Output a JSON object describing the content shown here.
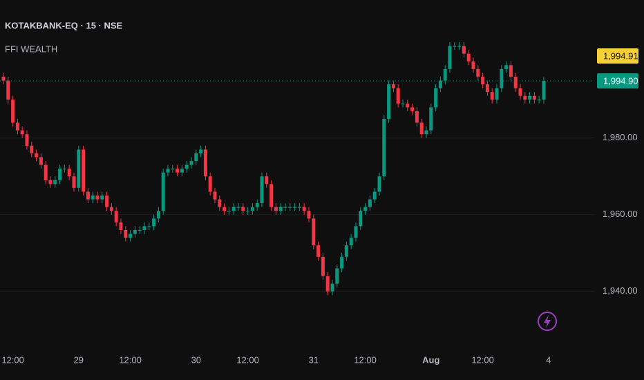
{
  "chart_data": {
    "type": "candlestick",
    "title": "KOTAKBANK-EQ · 15 · NSE",
    "subtitle": "FFI WEALTH",
    "categories": [
      null,
      null,
      "12:00",
      null,
      null,
      null,
      null,
      null,
      null,
      null,
      null,
      null,
      null,
      null,
      null,
      null,
      "29",
      null,
      null,
      null,
      null,
      null,
      null,
      null,
      null,
      null,
      null,
      "12:00",
      null,
      null,
      null,
      null,
      null,
      null,
      null,
      null,
      null,
      null,
      null,
      null,
      null,
      "30",
      null,
      null,
      null,
      null,
      null,
      null,
      null,
      null,
      null,
      null,
      "12:00",
      null,
      null,
      null,
      null,
      null,
      null,
      null,
      null,
      null,
      null,
      null,
      null,
      null,
      "31",
      null,
      null,
      null,
      null,
      null,
      null,
      null,
      null,
      null,
      null,
      "12:00",
      null,
      null,
      null,
      null,
      null,
      null,
      null,
      null,
      null,
      null,
      null,
      null,
      null,
      "Aug",
      null,
      null,
      null,
      null,
      null,
      null,
      null,
      null,
      null,
      null,
      "12:00",
      null,
      null,
      null,
      null,
      null,
      null,
      null,
      null,
      null,
      null,
      null,
      null,
      null,
      "4"
    ],
    "open": [
      1996,
      1995,
      1990,
      1984,
      1982,
      1981,
      1978,
      1976,
      1975,
      1973,
      1969,
      1968,
      1969,
      1972,
      1972,
      1970,
      1967,
      1977,
      1966,
      1964,
      1965,
      1964,
      1965,
      1962,
      1961,
      1958,
      1956,
      1954,
      1955,
      1956,
      1956,
      1957,
      1957,
      1959,
      1961,
      1971,
      1972,
      1972,
      1971,
      1972,
      1973,
      1974,
      1976,
      1977,
      1970,
      1966,
      1964,
      1962,
      1961,
      1961,
      1962,
      1962,
      1961,
      1961,
      1962,
      1963,
      1970,
      1968,
      1962,
      1961,
      1962,
      1962,
      1962,
      1962,
      1962,
      1961,
      1959,
      1952,
      1949,
      1944,
      1940,
      1942,
      1946,
      1949,
      1952,
      1954,
      1957,
      1961,
      1962,
      1964,
      1966,
      1970,
      1985,
      1994,
      1993,
      1989,
      1989,
      1988,
      1987,
      1984,
      1981,
      1982,
      1988,
      1993,
      1995,
      1998,
      2004,
      2004,
      2004,
      2002,
      2000,
      1998,
      1996,
      1994,
      1992,
      1990,
      1993,
      1998,
      1999,
      1996,
      1993,
      1991,
      1990,
      1991,
      1990,
      1990,
      null
    ],
    "high": [
      1997,
      1996,
      1991,
      1985,
      1983,
      1982,
      1979,
      1977,
      1976,
      1974,
      1970,
      1970,
      1973,
      1973,
      1973,
      1971,
      1978,
      1978,
      1967,
      1966,
      1966,
      1966,
      1966,
      1963,
      1962,
      1959,
      1957,
      1956,
      1957,
      1957,
      1958,
      1958,
      1960,
      1962,
      1972,
      1973,
      1973,
      1973,
      1973,
      1974,
      1975,
      1977,
      1978,
      1978,
      1971,
      1967,
      1965,
      1963,
      1962,
      1963,
      1963,
      1963,
      1962,
      1963,
      1964,
      1971,
      1971,
      1969,
      1963,
      1963,
      1963,
      1963,
      1963,
      1963,
      1963,
      1962,
      1960,
      1953,
      1950,
      1945,
      1943,
      1947,
      1950,
      1953,
      1955,
      1958,
      1962,
      1963,
      1965,
      1967,
      1971,
      1986,
      1995,
      1995,
      1994,
      1990,
      1990,
      1989,
      1988,
      1985,
      1983,
      1989,
      1994,
      1996,
      1999,
      2005,
      2005,
      2005,
      2005,
      2003,
      2001,
      1999,
      1997,
      1995,
      1993,
      1994,
      1999,
      2000,
      2000,
      1997,
      1994,
      1992,
      1992,
      1992,
      1991,
      1995.9,
      null
    ],
    "low": [
      1994,
      1989,
      1983,
      1981,
      1980,
      1977,
      1975,
      1974,
      1972,
      1968,
      1967,
      1967,
      1968,
      1971,
      1969,
      1966,
      1966,
      1965,
      1963,
      1963,
      1963,
      1963,
      1961,
      1960,
      1957,
      1955,
      1953,
      1953,
      1954,
      1955,
      1955,
      1956,
      1956,
      1958,
      1960,
      1970,
      1971,
      1970,
      1970,
      1971,
      1972,
      1973,
      1975,
      1969,
      1965,
      1963,
      1961,
      1960,
      1960,
      1960,
      1961,
      1960,
      1960,
      1960,
      1961,
      1962,
      1967,
      1961,
      1960,
      1960,
      1961,
      1961,
      1961,
      1961,
      1960,
      1958,
      1951,
      1948,
      1943,
      1939,
      1939,
      1941,
      1945,
      1948,
      1951,
      1953,
      1956,
      1960,
      1961,
      1963,
      1965,
      1969,
      1984,
      1992,
      1988,
      1988,
      1987,
      1986,
      1983,
      1980,
      1980,
      1981,
      1987,
      1992,
      1994,
      1997,
      2003,
      2003,
      2001,
      1999,
      1997,
      1995,
      1993,
      1991,
      1989,
      1989,
      1992,
      1997,
      1995,
      1992,
      1990,
      1989,
      1989,
      1989,
      1989,
      1989,
      null
    ],
    "close": [
      1995,
      1990,
      1984,
      1982,
      1981,
      1978,
      1976,
      1975,
      1973,
      1969,
      1968,
      1969,
      1972,
      1972,
      1970,
      1967,
      1977,
      1966,
      1964,
      1965,
      1964,
      1965,
      1962,
      1961,
      1958,
      1956,
      1954,
      1955,
      1956,
      1956,
      1957,
      1957,
      1959,
      1961,
      1971,
      1972,
      1972,
      1971,
      1972,
      1973,
      1974,
      1976,
      1977,
      1970,
      1966,
      1964,
      1962,
      1961,
      1961,
      1962,
      1962,
      1961,
      1961,
      1962,
      1963,
      1970,
      1968,
      1962,
      1961,
      1962,
      1962,
      1962,
      1962,
      1962,
      1961,
      1959,
      1952,
      1949,
      1944,
      1940,
      1942,
      1946,
      1949,
      1952,
      1954,
      1957,
      1961,
      1962,
      1964,
      1966,
      1970,
      1985,
      1994,
      1993,
      1989,
      1989,
      1988,
      1987,
      1984,
      1981,
      1982,
      1988,
      1993,
      1995,
      1998,
      2004,
      2004,
      2004,
      2002,
      2000,
      1998,
      1996,
      1994,
      1992,
      1990,
      1993,
      1998,
      1999,
      1996,
      1993,
      1991,
      1990,
      1991,
      1990,
      1990,
      1994.9,
      null
    ],
    "up_color": "#089981",
    "down_color": "#f23645",
    "ylim": [
      1929.5,
      2016
    ],
    "yticks": [
      {
        "value": 1940,
        "label": "1,940.00"
      },
      {
        "value": 1960,
        "label": "1,960.00"
      },
      {
        "value": 1980,
        "label": "1,980.00"
      }
    ],
    "grid": true,
    "last_price": {
      "value": 1994.9,
      "label": "1,994.90",
      "color": "#089981"
    },
    "price_marker": {
      "value": 1994.91,
      "label": "1,994.91",
      "color": "#f7d038"
    }
  }
}
